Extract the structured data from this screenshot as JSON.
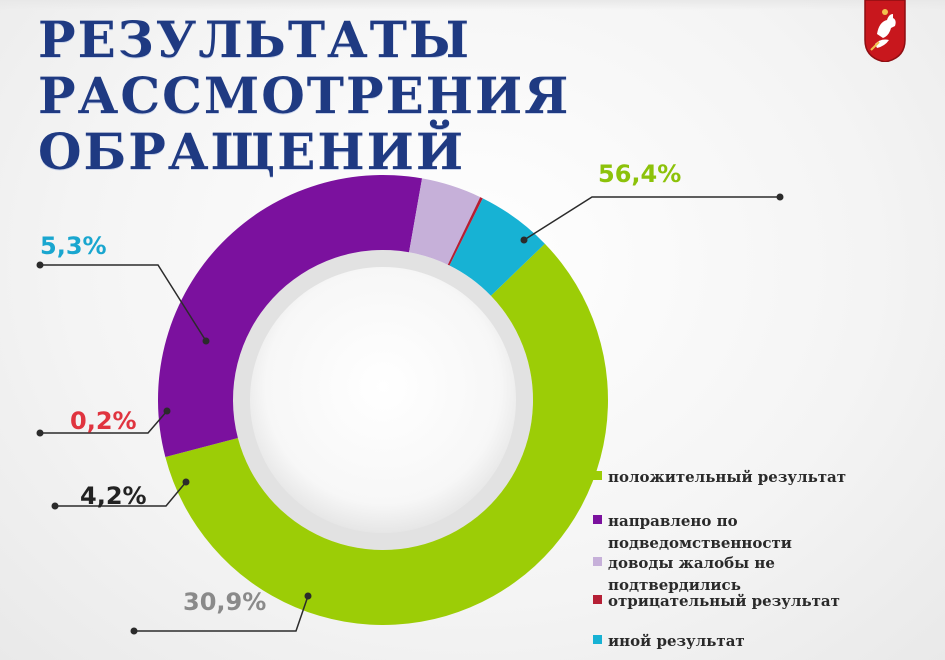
{
  "title_line1": "РЕЗУЛЬТАТЫ РАССМОТРЕНИЯ",
  "title_line2": "ОБРАЩЕНИЙ",
  "title_color": "#1f3a82",
  "emblem_icon": "moscow-coat-of-arms-icon",
  "chart_data": {
    "type": "pie",
    "subtype": "donut",
    "title": "",
    "series": [
      {
        "name": "положительный результат",
        "value": 56.4,
        "label": "56,4%",
        "color": "#9ccd06",
        "label_color": "#8cc20a"
      },
      {
        "name": "направлено по подведомственности",
        "value": 30.9,
        "label": "30,9%",
        "color": "#7b119e",
        "label_color": "#8a8a8a"
      },
      {
        "name": "доводы жалобы не подтвердились",
        "value": 4.2,
        "label": "4,2%",
        "color": "#c6b0d9",
        "label_color": "#222222"
      },
      {
        "name": "отрицательный результат",
        "value": 0.2,
        "label": "0,2%",
        "color": "#b51f35",
        "label_color": "#e0343f"
      },
      {
        "name": "иной результат",
        "value": 5.3,
        "label": "5,3%",
        "color": "#17b2d4",
        "label_color": "#19a6cf"
      }
    ],
    "legend_position": "bottom-right"
  }
}
